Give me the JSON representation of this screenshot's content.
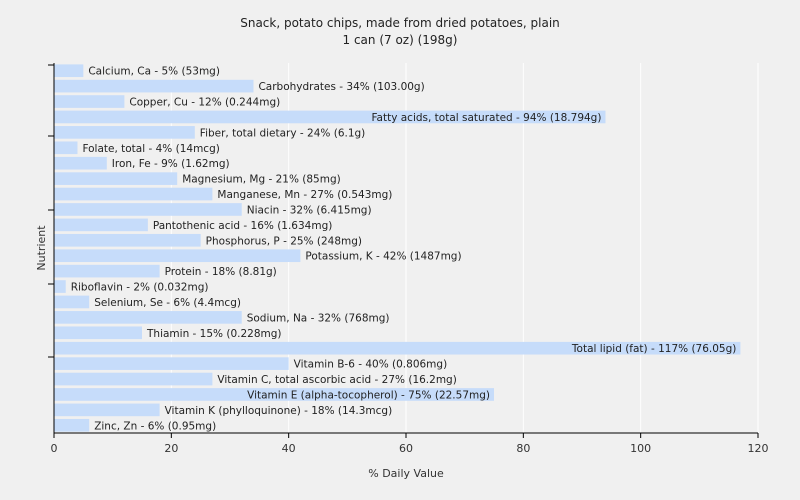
{
  "chart_data": {
    "type": "bar",
    "orientation": "horizontal",
    "title": "Snack, potato chips, made from dried potatoes, plain",
    "subtitle": "1 can (7 oz) (198g)",
    "xlabel": "% Daily Value",
    "ylabel": "Nutrient",
    "xlim": [
      0,
      120
    ],
    "xticks": [
      0,
      20,
      40,
      60,
      80,
      100,
      120
    ],
    "grid": true,
    "bar_color": "#c6dcfa",
    "categories": [
      "Calcium, Ca",
      "Carbohydrates",
      "Copper, Cu",
      "Fatty acids, total saturated",
      "Fiber, total dietary",
      "Folate, total",
      "Iron, Fe",
      "Magnesium, Mg",
      "Manganese, Mn",
      "Niacin",
      "Pantothenic acid",
      "Phosphorus, P",
      "Potassium, K",
      "Protein",
      "Riboflavin",
      "Selenium, Se",
      "Sodium, Na",
      "Thiamin",
      "Total lipid (fat)",
      "Vitamin B-6",
      "Vitamin C, total ascorbic acid",
      "Vitamin E (alpha-tocopherol)",
      "Vitamin K (phylloquinone)",
      "Zinc, Zn"
    ],
    "values": [
      5,
      34,
      12,
      94,
      24,
      4,
      9,
      21,
      27,
      32,
      16,
      25,
      42,
      18,
      2,
      6,
      32,
      15,
      117,
      40,
      27,
      75,
      18,
      6
    ],
    "labels": [
      "Calcium, Ca - 5% (53mg)",
      "Carbohydrates - 34% (103.00g)",
      "Copper, Cu - 12% (0.244mg)",
      "Fatty acids, total saturated - 94% (18.794g)",
      "Fiber, total dietary - 24% (6.1g)",
      "Folate, total - 4% (14mcg)",
      "Iron, Fe - 9% (1.62mg)",
      "Magnesium, Mg - 21% (85mg)",
      "Manganese, Mn - 27% (0.543mg)",
      "Niacin - 32% (6.415mg)",
      "Pantothenic acid - 16% (1.634mg)",
      "Phosphorus, P - 25% (248mg)",
      "Potassium, K - 42% (1487mg)",
      "Protein - 18% (8.81g)",
      "Riboflavin - 2% (0.032mg)",
      "Selenium, Se - 6% (4.4mcg)",
      "Sodium, Na - 32% (768mg)",
      "Thiamin - 15% (0.228mg)",
      "Total lipid (fat) - 117% (76.05g)",
      "Vitamin B-6 - 40% (0.806mg)",
      "Vitamin C, total ascorbic acid - 27% (16.2mg)",
      "Vitamin E (alpha-tocopherol) - 75% (22.57mg)",
      "Vitamin K (phylloquinone) - 18% (14.3mcg)",
      "Zinc, Zn - 6% (0.95mg)"
    ]
  }
}
